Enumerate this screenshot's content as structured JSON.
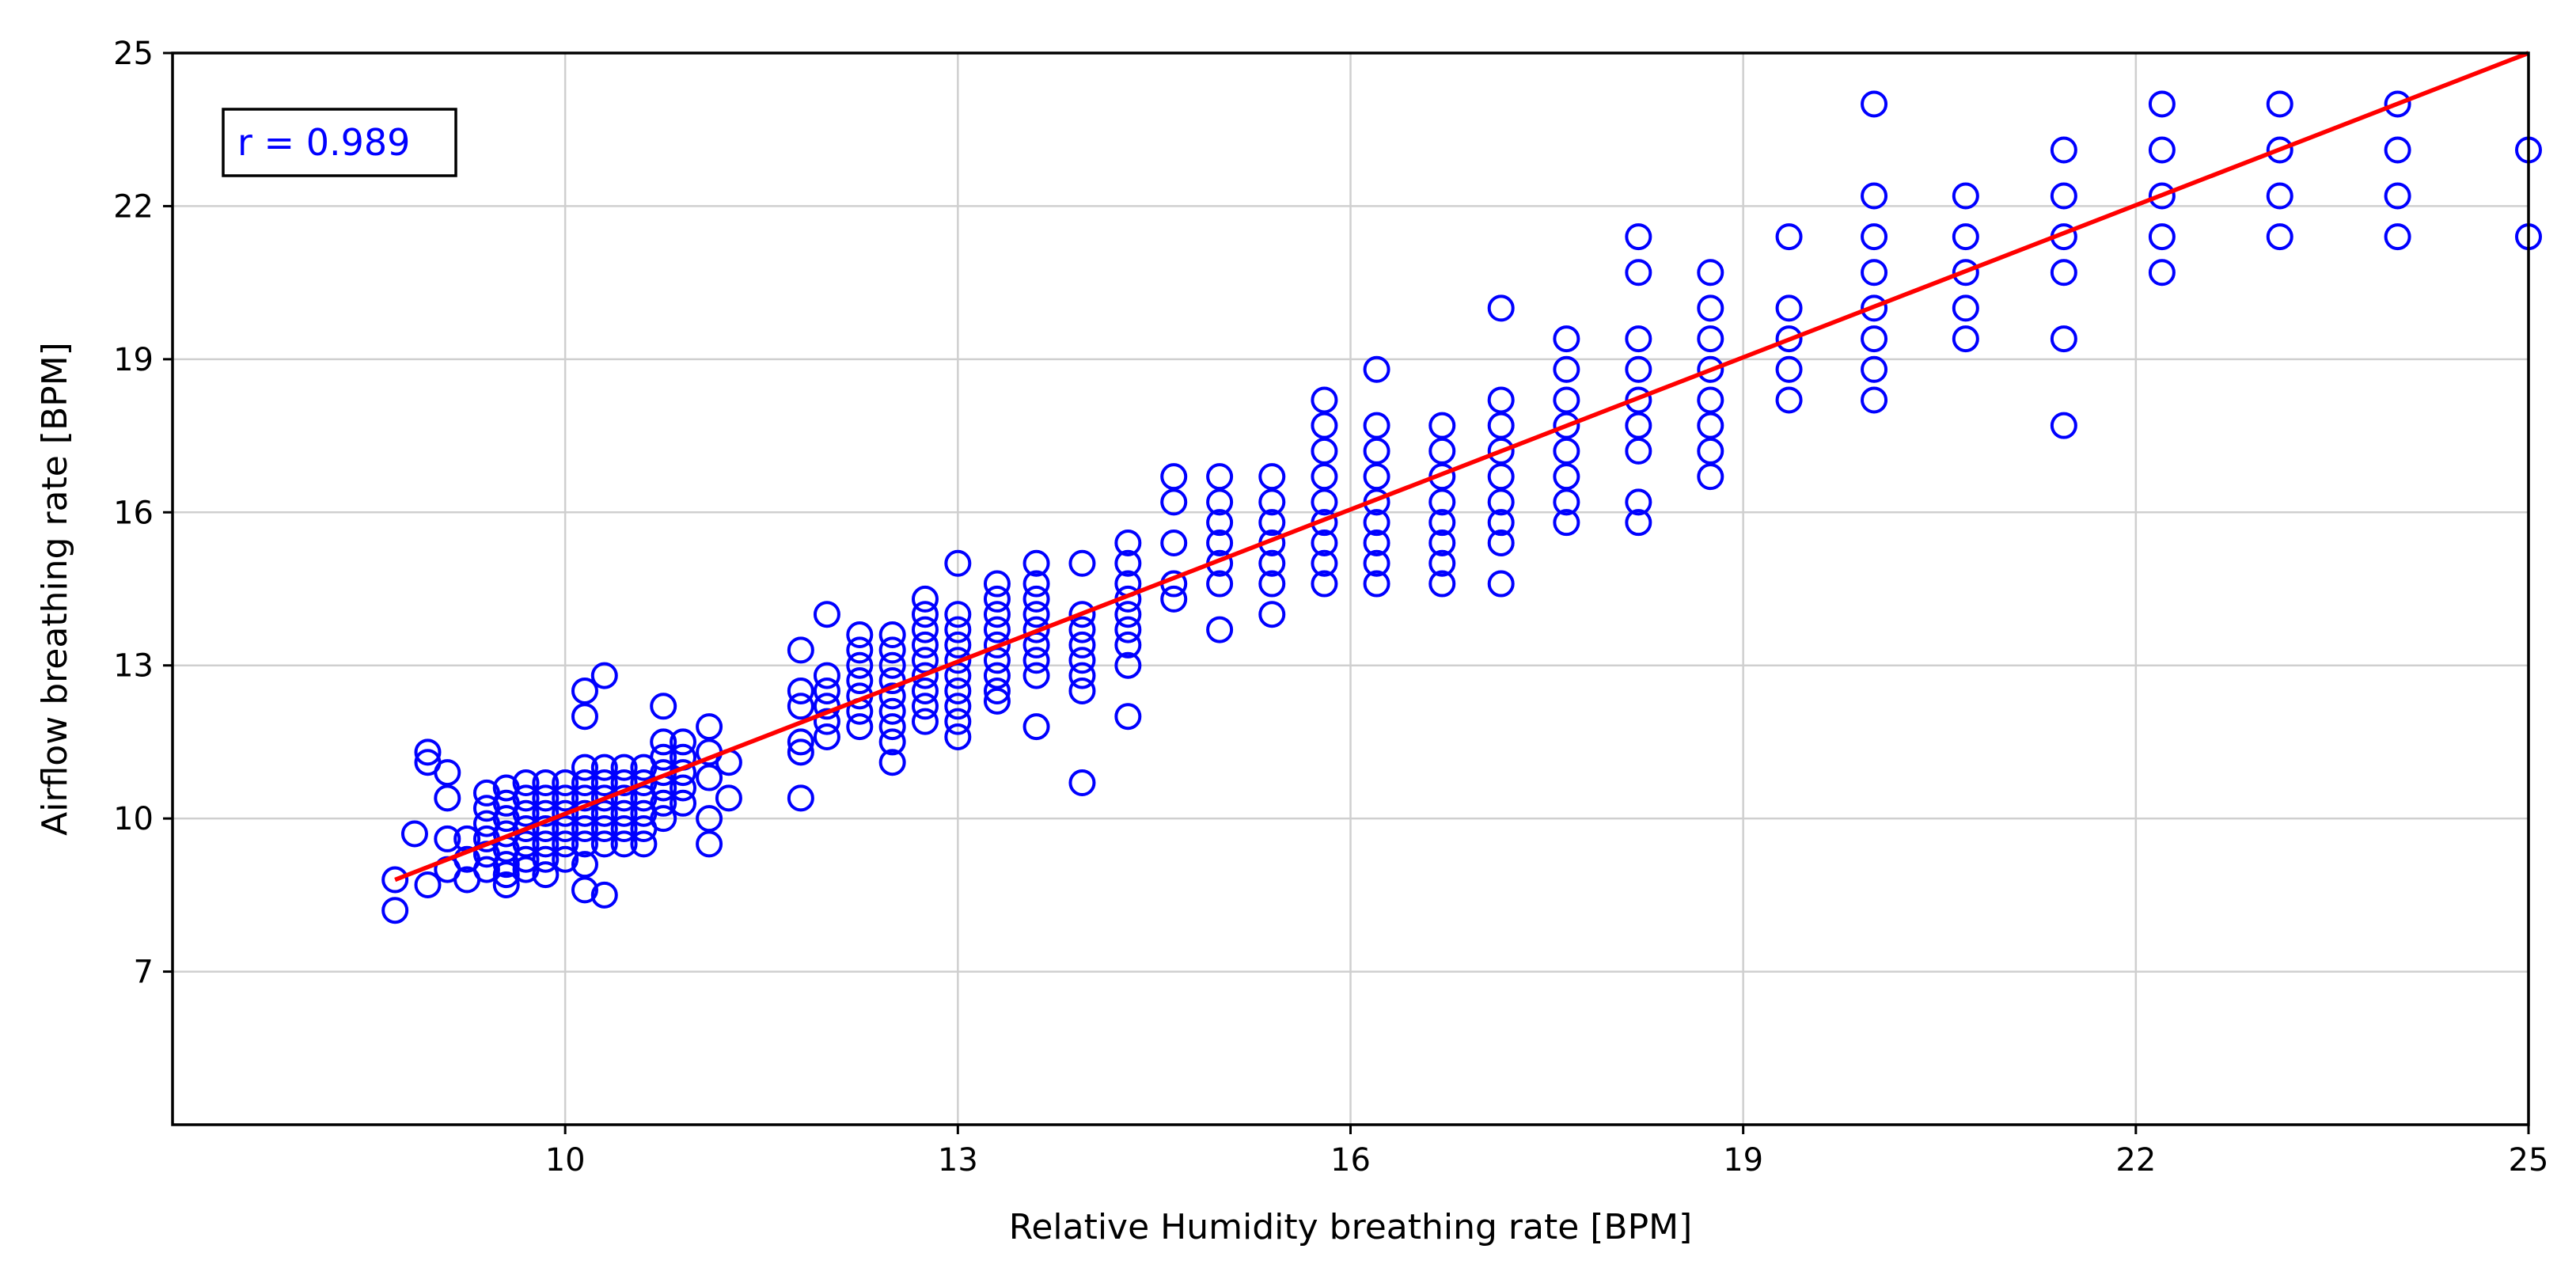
{
  "chart_data": {
    "type": "scatter",
    "title": "",
    "xlabel": "Relative Humidity breathing rate [BPM]",
    "ylabel": "Airflow breathing rate [BPM]",
    "xlim": [
      7,
      25
    ],
    "ylim": [
      4,
      25
    ],
    "xticks": [
      10,
      13,
      16,
      19,
      22,
      25
    ],
    "yticks": [
      7,
      10,
      13,
      16,
      19,
      22,
      25
    ],
    "grid": true,
    "marker_color": "#0000ff",
    "fit_color": "#ff0000",
    "annotation": {
      "text": "r = 0.989",
      "position": "top-left",
      "color": "#0000ff"
    },
    "fit_line": {
      "x": [
        8.7,
        25
      ],
      "y": [
        8.8,
        25
      ]
    },
    "points": [
      [
        8.7,
        8.8
      ],
      [
        8.7,
        8.2
      ],
      [
        8.85,
        9.7
      ],
      [
        8.95,
        11.3
      ],
      [
        8.95,
        11.1
      ],
      [
        8.95,
        8.7
      ],
      [
        9.1,
        10.9
      ],
      [
        9.1,
        10.4
      ],
      [
        9.1,
        9.6
      ],
      [
        9.1,
        9.0
      ],
      [
        9.25,
        9.6
      ],
      [
        9.25,
        9.2
      ],
      [
        9.25,
        8.8
      ],
      [
        9.4,
        10.5
      ],
      [
        9.4,
        10.2
      ],
      [
        9.4,
        9.9
      ],
      [
        9.4,
        9.6
      ],
      [
        9.4,
        9.3
      ],
      [
        9.4,
        9.0
      ],
      [
        9.55,
        10.6
      ],
      [
        9.55,
        10.3
      ],
      [
        9.55,
        10.0
      ],
      [
        9.55,
        9.7
      ],
      [
        9.55,
        9.4
      ],
      [
        9.55,
        9.1
      ],
      [
        9.55,
        8.9
      ],
      [
        9.55,
        8.7
      ],
      [
        9.7,
        10.7
      ],
      [
        9.7,
        10.4
      ],
      [
        9.7,
        10.1
      ],
      [
        9.7,
        9.8
      ],
      [
        9.7,
        9.5
      ],
      [
        9.7,
        9.2
      ],
      [
        9.7,
        9.0
      ],
      [
        9.85,
        10.7
      ],
      [
        9.85,
        10.4
      ],
      [
        9.85,
        10.1
      ],
      [
        9.85,
        9.8
      ],
      [
        9.85,
        9.5
      ],
      [
        9.85,
        9.2
      ],
      [
        9.85,
        8.9
      ],
      [
        10.0,
        10.7
      ],
      [
        10.0,
        10.4
      ],
      [
        10.0,
        10.1
      ],
      [
        10.0,
        9.8
      ],
      [
        10.0,
        9.5
      ],
      [
        10.0,
        9.2
      ],
      [
        10.15,
        11.0
      ],
      [
        10.15,
        10.7
      ],
      [
        10.15,
        10.4
      ],
      [
        10.15,
        10.1
      ],
      [
        10.15,
        9.8
      ],
      [
        10.15,
        9.5
      ],
      [
        10.15,
        12.5
      ],
      [
        10.15,
        12.0
      ],
      [
        10.15,
        9.1
      ],
      [
        10.15,
        8.6
      ],
      [
        10.3,
        11.0
      ],
      [
        10.3,
        10.7
      ],
      [
        10.3,
        10.4
      ],
      [
        10.3,
        10.1
      ],
      [
        10.3,
        9.8
      ],
      [
        10.3,
        9.5
      ],
      [
        10.3,
        12.8
      ],
      [
        10.3,
        8.5
      ],
      [
        10.45,
        11.0
      ],
      [
        10.45,
        10.7
      ],
      [
        10.45,
        10.4
      ],
      [
        10.45,
        10.1
      ],
      [
        10.45,
        9.8
      ],
      [
        10.45,
        9.5
      ],
      [
        10.6,
        11.0
      ],
      [
        10.6,
        10.7
      ],
      [
        10.6,
        10.4
      ],
      [
        10.6,
        10.1
      ],
      [
        10.6,
        9.8
      ],
      [
        10.6,
        9.5
      ],
      [
        10.75,
        11.5
      ],
      [
        10.75,
        11.2
      ],
      [
        10.75,
        10.9
      ],
      [
        10.75,
        10.6
      ],
      [
        10.75,
        10.3
      ],
      [
        10.75,
        10.0
      ],
      [
        10.75,
        12.2
      ],
      [
        10.9,
        11.5
      ],
      [
        10.9,
        11.2
      ],
      [
        10.9,
        10.9
      ],
      [
        10.9,
        10.6
      ],
      [
        10.9,
        10.3
      ],
      [
        11.1,
        11.8
      ],
      [
        11.1,
        11.3
      ],
      [
        11.1,
        10.8
      ],
      [
        11.1,
        10.0
      ],
      [
        11.1,
        9.5
      ],
      [
        11.25,
        11.1
      ],
      [
        11.25,
        10.4
      ],
      [
        11.8,
        13.3
      ],
      [
        11.8,
        12.5
      ],
      [
        11.8,
        12.2
      ],
      [
        11.8,
        11.5
      ],
      [
        11.8,
        11.3
      ],
      [
        11.8,
        10.4
      ],
      [
        12.0,
        14.0
      ],
      [
        12.0,
        12.8
      ],
      [
        12.0,
        12.5
      ],
      [
        12.0,
        12.2
      ],
      [
        12.0,
        11.9
      ],
      [
        12.0,
        11.6
      ],
      [
        12.25,
        13.6
      ],
      [
        12.25,
        13.3
      ],
      [
        12.25,
        13.0
      ],
      [
        12.25,
        12.7
      ],
      [
        12.25,
        12.4
      ],
      [
        12.25,
        12.1
      ],
      [
        12.25,
        11.8
      ],
      [
        12.5,
        13.6
      ],
      [
        12.5,
        13.3
      ],
      [
        12.5,
        13.0
      ],
      [
        12.5,
        12.7
      ],
      [
        12.5,
        12.4
      ],
      [
        12.5,
        12.1
      ],
      [
        12.5,
        11.8
      ],
      [
        12.5,
        11.5
      ],
      [
        12.5,
        11.1
      ],
      [
        12.75,
        14.3
      ],
      [
        12.75,
        14.0
      ],
      [
        12.75,
        13.7
      ],
      [
        12.75,
        13.4
      ],
      [
        12.75,
        13.1
      ],
      [
        12.75,
        12.8
      ],
      [
        12.75,
        12.5
      ],
      [
        12.75,
        12.2
      ],
      [
        12.75,
        11.9
      ],
      [
        13.0,
        15.0
      ],
      [
        13.0,
        14.0
      ],
      [
        13.0,
        13.7
      ],
      [
        13.0,
        13.4
      ],
      [
        13.0,
        13.1
      ],
      [
        13.0,
        12.8
      ],
      [
        13.0,
        12.5
      ],
      [
        13.0,
        12.2
      ],
      [
        13.0,
        11.9
      ],
      [
        13.0,
        11.6
      ],
      [
        13.3,
        14.6
      ],
      [
        13.3,
        14.3
      ],
      [
        13.3,
        14.0
      ],
      [
        13.3,
        13.7
      ],
      [
        13.3,
        13.4
      ],
      [
        13.3,
        13.1
      ],
      [
        13.3,
        12.8
      ],
      [
        13.3,
        12.5
      ],
      [
        13.3,
        12.3
      ],
      [
        13.6,
        15.0
      ],
      [
        13.6,
        14.6
      ],
      [
        13.6,
        14.3
      ],
      [
        13.6,
        14.0
      ],
      [
        13.6,
        13.7
      ],
      [
        13.6,
        13.4
      ],
      [
        13.6,
        13.1
      ],
      [
        13.6,
        12.8
      ],
      [
        13.6,
        11.8
      ],
      [
        13.95,
        15.0
      ],
      [
        13.95,
        14.0
      ],
      [
        13.95,
        13.7
      ],
      [
        13.95,
        13.4
      ],
      [
        13.95,
        13.1
      ],
      [
        13.95,
        12.8
      ],
      [
        13.95,
        12.5
      ],
      [
        13.95,
        10.7
      ],
      [
        14.3,
        15.4
      ],
      [
        14.3,
        15.0
      ],
      [
        14.3,
        14.6
      ],
      [
        14.3,
        14.3
      ],
      [
        14.3,
        14.0
      ],
      [
        14.3,
        13.7
      ],
      [
        14.3,
        13.4
      ],
      [
        14.3,
        13.0
      ],
      [
        14.3,
        12.0
      ],
      [
        14.65,
        16.7
      ],
      [
        14.65,
        16.2
      ],
      [
        14.65,
        15.4
      ],
      [
        14.65,
        14.6
      ],
      [
        14.65,
        14.3
      ],
      [
        15.0,
        16.7
      ],
      [
        15.0,
        16.2
      ],
      [
        15.0,
        15.8
      ],
      [
        15.0,
        15.4
      ],
      [
        15.0,
        15.0
      ],
      [
        15.0,
        14.6
      ],
      [
        15.0,
        13.7
      ],
      [
        15.4,
        16.7
      ],
      [
        15.4,
        16.2
      ],
      [
        15.4,
        15.8
      ],
      [
        15.4,
        15.4
      ],
      [
        15.4,
        15.0
      ],
      [
        15.4,
        14.6
      ],
      [
        15.4,
        14.0
      ],
      [
        15.8,
        18.2
      ],
      [
        15.8,
        17.7
      ],
      [
        15.8,
        17.2
      ],
      [
        15.8,
        16.7
      ],
      [
        15.8,
        16.2
      ],
      [
        15.8,
        15.8
      ],
      [
        15.8,
        15.4
      ],
      [
        15.8,
        15.0
      ],
      [
        15.8,
        14.6
      ],
      [
        16.2,
        18.8
      ],
      [
        16.2,
        17.7
      ],
      [
        16.2,
        17.2
      ],
      [
        16.2,
        16.7
      ],
      [
        16.2,
        16.2
      ],
      [
        16.2,
        15.8
      ],
      [
        16.2,
        15.4
      ],
      [
        16.2,
        15.0
      ],
      [
        16.2,
        14.6
      ],
      [
        16.7,
        17.7
      ],
      [
        16.7,
        17.2
      ],
      [
        16.7,
        16.7
      ],
      [
        16.7,
        16.2
      ],
      [
        16.7,
        15.8
      ],
      [
        16.7,
        15.4
      ],
      [
        16.7,
        15.0
      ],
      [
        16.7,
        14.6
      ],
      [
        17.15,
        20.0
      ],
      [
        17.15,
        18.2
      ],
      [
        17.15,
        17.7
      ],
      [
        17.15,
        17.2
      ],
      [
        17.15,
        16.7
      ],
      [
        17.15,
        16.2
      ],
      [
        17.15,
        15.8
      ],
      [
        17.15,
        15.4
      ],
      [
        17.15,
        14.6
      ],
      [
        17.65,
        19.4
      ],
      [
        17.65,
        18.8
      ],
      [
        17.65,
        18.2
      ],
      [
        17.65,
        17.7
      ],
      [
        17.65,
        17.2
      ],
      [
        17.65,
        16.7
      ],
      [
        17.65,
        16.2
      ],
      [
        17.65,
        15.8
      ],
      [
        18.2,
        21.4
      ],
      [
        18.2,
        20.7
      ],
      [
        18.2,
        19.4
      ],
      [
        18.2,
        18.8
      ],
      [
        18.2,
        18.2
      ],
      [
        18.2,
        17.7
      ],
      [
        18.2,
        17.2
      ],
      [
        18.2,
        16.2
      ],
      [
        18.2,
        15.8
      ],
      [
        18.75,
        20.7
      ],
      [
        18.75,
        20.0
      ],
      [
        18.75,
        19.4
      ],
      [
        18.75,
        18.8
      ],
      [
        18.75,
        18.2
      ],
      [
        18.75,
        17.7
      ],
      [
        18.75,
        17.2
      ],
      [
        18.75,
        16.7
      ],
      [
        19.35,
        21.4
      ],
      [
        19.35,
        20.0
      ],
      [
        19.35,
        19.4
      ],
      [
        19.35,
        18.8
      ],
      [
        19.35,
        18.2
      ],
      [
        20.0,
        24.0
      ],
      [
        20.0,
        22.2
      ],
      [
        20.0,
        21.4
      ],
      [
        20.0,
        20.7
      ],
      [
        20.0,
        20.0
      ],
      [
        20.0,
        19.4
      ],
      [
        20.0,
        18.8
      ],
      [
        20.0,
        18.2
      ],
      [
        20.7,
        22.2
      ],
      [
        20.7,
        21.4
      ],
      [
        20.7,
        20.7
      ],
      [
        20.7,
        20.0
      ],
      [
        20.7,
        19.4
      ],
      [
        21.45,
        23.1
      ],
      [
        21.45,
        22.2
      ],
      [
        21.45,
        21.4
      ],
      [
        21.45,
        20.7
      ],
      [
        21.45,
        19.4
      ],
      [
        21.45,
        17.7
      ],
      [
        22.2,
        24.0
      ],
      [
        22.2,
        23.1
      ],
      [
        22.2,
        22.2
      ],
      [
        22.2,
        21.4
      ],
      [
        22.2,
        20.7
      ],
      [
        23.1,
        24.0
      ],
      [
        23.1,
        23.1
      ],
      [
        23.1,
        22.2
      ],
      [
        23.1,
        21.4
      ],
      [
        24.0,
        24.0
      ],
      [
        24.0,
        23.1
      ],
      [
        24.0,
        22.2
      ],
      [
        24.0,
        21.4
      ],
      [
        25.0,
        23.1
      ],
      [
        25.0,
        21.4
      ]
    ]
  }
}
